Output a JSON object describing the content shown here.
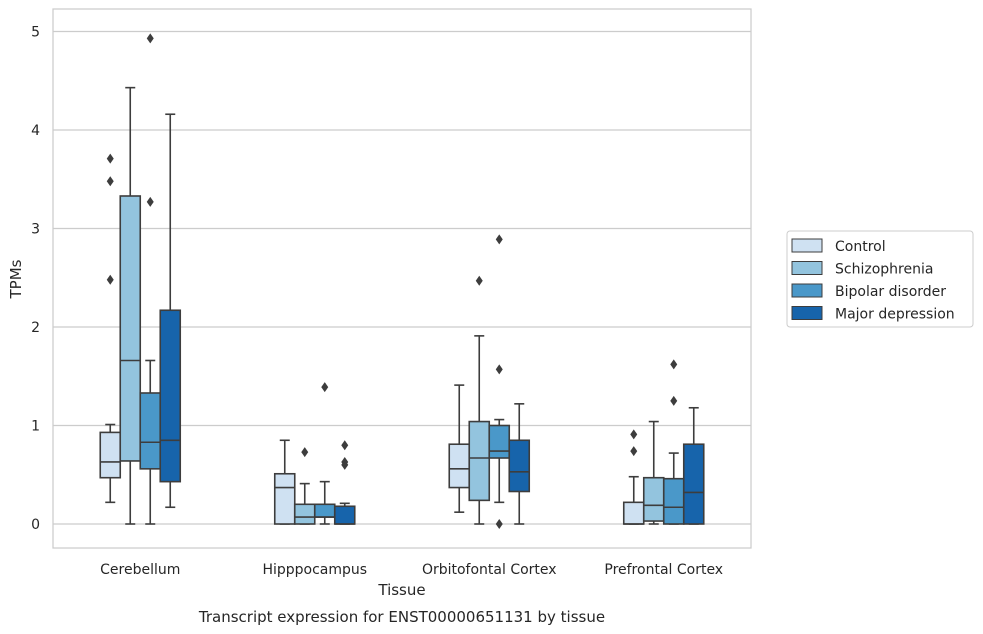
{
  "caption": "Transcript expression for ENST00000651131 by tissue",
  "colors": {
    "Control": "#cfe1f2",
    "Schizophrenia": "#93c4de",
    "Bipolar disorder": "#4a98c9",
    "Major depression": "#1764ab",
    "grid": "#cccccc",
    "line": "#3d3d3d"
  },
  "chart_data": {
    "type": "box",
    "xlabel": "Tissue",
    "ylabel": "TPMs",
    "ylim": [
      -0.25,
      5.2
    ],
    "yticks": [
      0,
      1,
      2,
      3,
      4,
      5
    ],
    "grid": "horizontal",
    "legend_position": "right",
    "categories": [
      "Cerebellum",
      "Hipppocampus",
      "Orbitofontal Cortex",
      "Prefrontal Cortex"
    ],
    "series": [
      {
        "name": "Control",
        "boxes": [
          {
            "whislo": 0.22,
            "q1": 0.47,
            "med": 0.63,
            "q3": 0.93,
            "whishi": 1.01,
            "fliers": [
              2.48,
              3.48,
              3.71
            ]
          },
          {
            "whislo": 0.0,
            "q1": 0.0,
            "med": 0.37,
            "q3": 0.51,
            "whishi": 0.85,
            "fliers": []
          },
          {
            "whislo": 0.12,
            "q1": 0.37,
            "med": 0.56,
            "q3": 0.81,
            "whishi": 1.41,
            "fliers": []
          },
          {
            "whislo": 0.0,
            "q1": 0.0,
            "med": 0.0,
            "q3": 0.22,
            "whishi": 0.48,
            "fliers": [
              0.74,
              0.91
            ]
          }
        ]
      },
      {
        "name": "Schizophrenia",
        "boxes": [
          {
            "whislo": 0.0,
            "q1": 0.64,
            "med": 1.66,
            "q3": 3.33,
            "whishi": 4.43,
            "fliers": []
          },
          {
            "whislo": 0.0,
            "q1": 0.0,
            "med": 0.07,
            "q3": 0.2,
            "whishi": 0.41,
            "fliers": [
              0.73
            ]
          },
          {
            "whislo": 0.0,
            "q1": 0.24,
            "med": 0.67,
            "q3": 1.04,
            "whishi": 1.91,
            "fliers": [
              2.47
            ]
          },
          {
            "whislo": 0.0,
            "q1": 0.03,
            "med": 0.19,
            "q3": 0.47,
            "whishi": 1.04,
            "fliers": []
          }
        ]
      },
      {
        "name": "Bipolar disorder",
        "boxes": [
          {
            "whislo": 0.0,
            "q1": 0.56,
            "med": 0.83,
            "q3": 1.33,
            "whishi": 1.66,
            "fliers": [
              3.27,
              4.93
            ]
          },
          {
            "whislo": 0.0,
            "q1": 0.07,
            "med": 0.07,
            "q3": 0.2,
            "whishi": 0.43,
            "fliers": [
              1.39
            ]
          },
          {
            "whislo": 0.22,
            "q1": 0.67,
            "med": 0.74,
            "q3": 1.0,
            "whishi": 1.06,
            "fliers": [
              0.0,
              1.57,
              2.89
            ]
          },
          {
            "whislo": 0.0,
            "q1": 0.0,
            "med": 0.17,
            "q3": 0.46,
            "whishi": 0.72,
            "fliers": [
              1.25,
              1.62
            ]
          }
        ]
      },
      {
        "name": "Major depression",
        "boxes": [
          {
            "whislo": 0.17,
            "q1": 0.43,
            "med": 0.85,
            "q3": 2.17,
            "whishi": 4.16,
            "fliers": []
          },
          {
            "whislo": 0.0,
            "q1": 0.0,
            "med": 0.0,
            "q3": 0.18,
            "whishi": 0.21,
            "fliers": [
              0.6,
              0.63,
              0.8
            ]
          },
          {
            "whislo": 0.0,
            "q1": 0.33,
            "med": 0.53,
            "q3": 0.85,
            "whishi": 1.22,
            "fliers": []
          },
          {
            "whislo": 0.0,
            "q1": 0.0,
            "med": 0.32,
            "q3": 0.81,
            "whishi": 1.18,
            "fliers": []
          }
        ]
      }
    ]
  }
}
